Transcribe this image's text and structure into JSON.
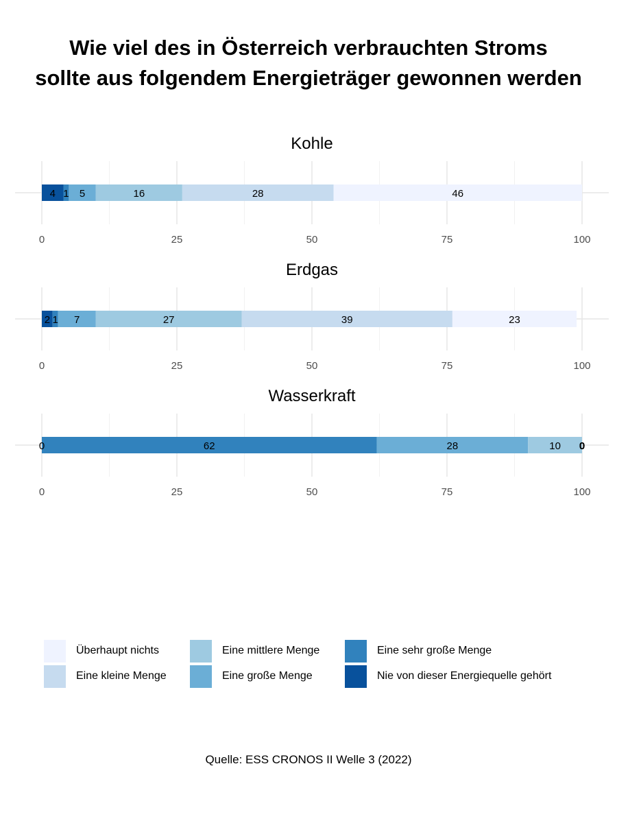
{
  "title_lines": [
    "Wie viel des in Österreich verbrauchten Stroms",
    "sollte aus folgendem Energieträger gewonnen werden"
  ],
  "caption": "Quelle: ESS CRONOS II Welle 3 (2022)",
  "colors": {
    "Überhaupt nichts": "#eff3ff",
    "Eine kleine Menge": "#c6dbef",
    "Eine mittlere Menge": "#9ecae1",
    "Eine große Menge": "#6baed6",
    "Eine sehr große Menge": "#3182bd",
    "Nie von dieser Energiequelle gehört": "#08519c"
  },
  "legend": {
    "items": [
      "Überhaupt nichts",
      "Eine kleine Menge",
      "Eine mittlere Menge",
      "Eine große Menge",
      "Eine sehr große Menge",
      "Nie von dieser Energiequelle gehört"
    ]
  },
  "chart_data": [
    {
      "type": "bar",
      "stacked": true,
      "orientation": "horizontal",
      "title": "Kohle",
      "xlim": [
        0,
        100
      ],
      "x_ticks": [
        0,
        25,
        50,
        75,
        100
      ],
      "grid": true,
      "segments": [
        {
          "name": "Nie von dieser Energiequelle gehört",
          "value": 4
        },
        {
          "name": "Eine sehr große Menge",
          "value": 1
        },
        {
          "name": "Eine große Menge",
          "value": 5
        },
        {
          "name": "Eine mittlere Menge",
          "value": 16
        },
        {
          "name": "Eine kleine Menge",
          "value": 28
        },
        {
          "name": "Überhaupt nichts",
          "value": 46
        }
      ]
    },
    {
      "type": "bar",
      "stacked": true,
      "orientation": "horizontal",
      "title": "Erdgas",
      "xlim": [
        0,
        100
      ],
      "x_ticks": [
        0,
        25,
        50,
        75,
        100
      ],
      "grid": true,
      "segments": [
        {
          "name": "Nie von dieser Energiequelle gehört",
          "value": 2
        },
        {
          "name": "Eine sehr große Menge",
          "value": 1
        },
        {
          "name": "Eine große Menge",
          "value": 7
        },
        {
          "name": "Eine mittlere Menge",
          "value": 27
        },
        {
          "name": "Eine kleine Menge",
          "value": 39
        },
        {
          "name": "Überhaupt nichts",
          "value": 23
        }
      ]
    },
    {
      "type": "bar",
      "stacked": true,
      "orientation": "horizontal",
      "title": "Wasserkraft",
      "xlim": [
        0,
        100
      ],
      "x_ticks": [
        0,
        25,
        50,
        75,
        100
      ],
      "grid": true,
      "segments": [
        {
          "name": "Nie von dieser Energiequelle gehört",
          "value": 0
        },
        {
          "name": "Eine sehr große Menge",
          "value": 62
        },
        {
          "name": "Eine große Menge",
          "value": 28
        },
        {
          "name": "Eine mittlere Menge",
          "value": 10
        },
        {
          "name": "Eine kleine Menge",
          "value": 0
        },
        {
          "name": "Überhaupt nichts",
          "value": 0
        }
      ]
    }
  ]
}
